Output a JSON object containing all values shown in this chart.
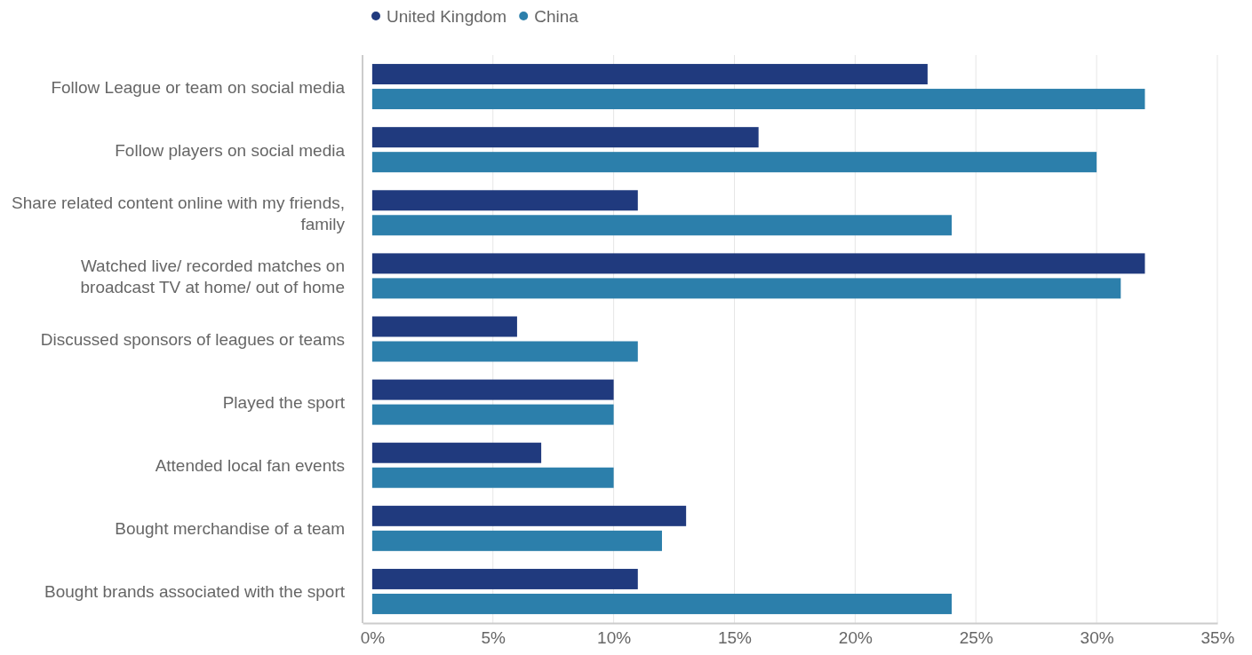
{
  "chart_data": {
    "type": "bar",
    "orientation": "horizontal",
    "categories": [
      "Follow League or team on social media",
      "Follow players on social media",
      "Share related content online with my friends, family",
      "Watched live/ recorded matches on broadcast TV at home/ out of home",
      "Discussed sponsors of leagues or teams",
      "Played the sport",
      "Attended local fan events",
      "Bought merchandise of a team",
      "Bought brands associated with the sport"
    ],
    "series": [
      {
        "name": "United Kingdom",
        "color": "#203a7e",
        "values": [
          23,
          16,
          11,
          32,
          6,
          10,
          7,
          13,
          11
        ]
      },
      {
        "name": "China",
        "color": "#2c7fab",
        "values": [
          32,
          30,
          24,
          31,
          11,
          10,
          10,
          12,
          24
        ]
      }
    ],
    "xlim": [
      -0.4,
      35
    ],
    "xticks": [
      {
        "value": 0,
        "label": "0%"
      },
      {
        "value": 5,
        "label": "5%"
      },
      {
        "value": 10,
        "label": "10%"
      },
      {
        "value": 15,
        "label": "15%"
      },
      {
        "value": 20,
        "label": "20%"
      },
      {
        "value": 25,
        "label": "25%"
      },
      {
        "value": 30,
        "label": "30%"
      },
      {
        "value": 35,
        "label": "35%"
      }
    ],
    "grid": "x",
    "legend": "top"
  }
}
